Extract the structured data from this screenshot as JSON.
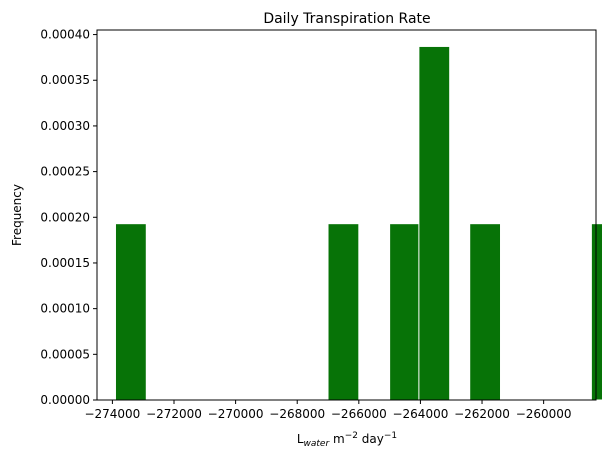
{
  "chart_data": {
    "type": "bar",
    "title": "Daily Transpiration Rate",
    "xlabel": {
      "base": "L",
      "sub": "water",
      "mid": " m",
      "sup1": "−2",
      "end": " day",
      "sup2": "−1"
    },
    "ylabel": "Frequency",
    "xlim": [
      -274500,
      -258300
    ],
    "ylim": [
      0,
      0.000405
    ],
    "xticks": [
      -274000,
      -272000,
      -270000,
      -268000,
      -266000,
      -264000,
      -262000,
      -260000
    ],
    "xtick_labels": [
      "−274000",
      "−272000",
      "−270000",
      "−268000",
      "−266000",
      "−264000",
      "−262000",
      "−260000"
    ],
    "yticks": [
      0,
      5e-05,
      0.0001,
      0.00015,
      0.0002,
      0.00025,
      0.0003,
      0.00035,
      0.0004
    ],
    "ytick_labels": [
      "0.00000",
      "0.00005",
      "0.00010",
      "0.00015",
      "0.00020",
      "0.00025",
      "0.00030",
      "0.00035",
      "0.00040"
    ],
    "bin_width": 1000,
    "bars": [
      {
        "x0": -273900,
        "value": 0.000193
      },
      {
        "x0": -267000,
        "value": 0.000193
      },
      {
        "x0": -265000,
        "value": 0.000193
      },
      {
        "x0": -264050,
        "value": 0.000387
      },
      {
        "x0": -263000,
        "value": 0
      },
      {
        "x0": -262000,
        "value": 0
      },
      {
        "x0": -262400,
        "value": 0.000193
      },
      {
        "x0": -258450,
        "value": 0.000193
      }
    ],
    "bar_color": "#077307",
    "edge_color": "#ffffff",
    "grid": false
  }
}
